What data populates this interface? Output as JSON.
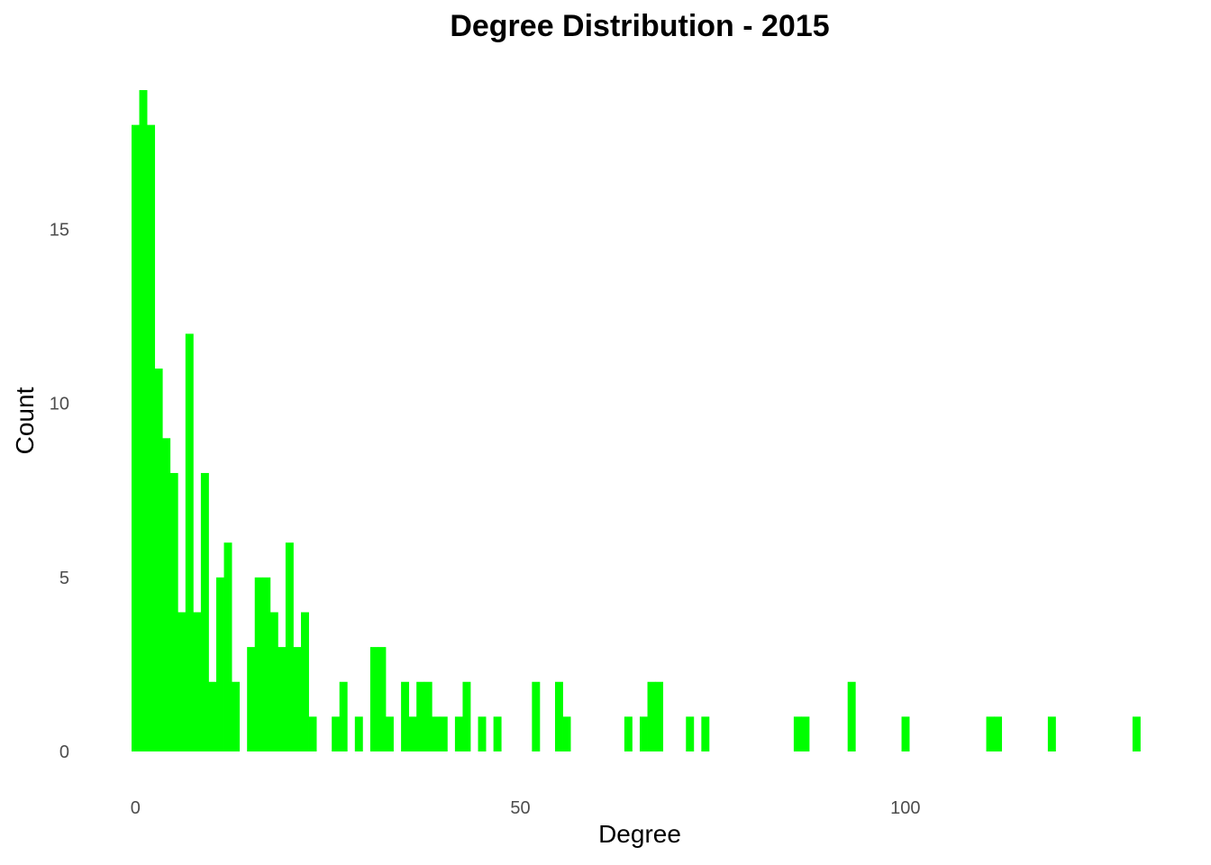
{
  "chart_data": {
    "type": "bar",
    "title": "Degree Distribution - 2015",
    "xlabel": "Degree",
    "ylabel": "Count",
    "xlim": [
      -0.5,
      131.5
    ],
    "ylim": [
      0,
      19
    ],
    "x_ticks": [
      0,
      50,
      100
    ],
    "y_ticks": [
      0,
      5,
      10,
      15
    ],
    "grid": false,
    "legend": "none",
    "bar_color": "#00ff00",
    "bin_width": 1,
    "degree": [
      0,
      1,
      2,
      3,
      4,
      5,
      6,
      7,
      8,
      9,
      10,
      11,
      12,
      13,
      15,
      16,
      17,
      18,
      19,
      20,
      21,
      22,
      23,
      26,
      27,
      29,
      31,
      32,
      33,
      35,
      36,
      37,
      38,
      39,
      40,
      42,
      43,
      45,
      47,
      52,
      55,
      56,
      64,
      66,
      67,
      68,
      72,
      74,
      86,
      87,
      93,
      100,
      111,
      112,
      119,
      130
    ],
    "count": [
      18,
      19,
      18,
      11,
      9,
      8,
      4,
      12,
      4,
      8,
      2,
      5,
      6,
      2,
      3,
      5,
      5,
      4,
      3,
      6,
      3,
      4,
      1,
      1,
      2,
      1,
      3,
      3,
      1,
      2,
      1,
      2,
      2,
      1,
      1,
      1,
      2,
      1,
      1,
      2,
      2,
      1,
      1,
      1,
      2,
      2,
      1,
      1,
      1,
      1,
      2,
      1,
      1,
      1,
      1,
      1
    ]
  }
}
